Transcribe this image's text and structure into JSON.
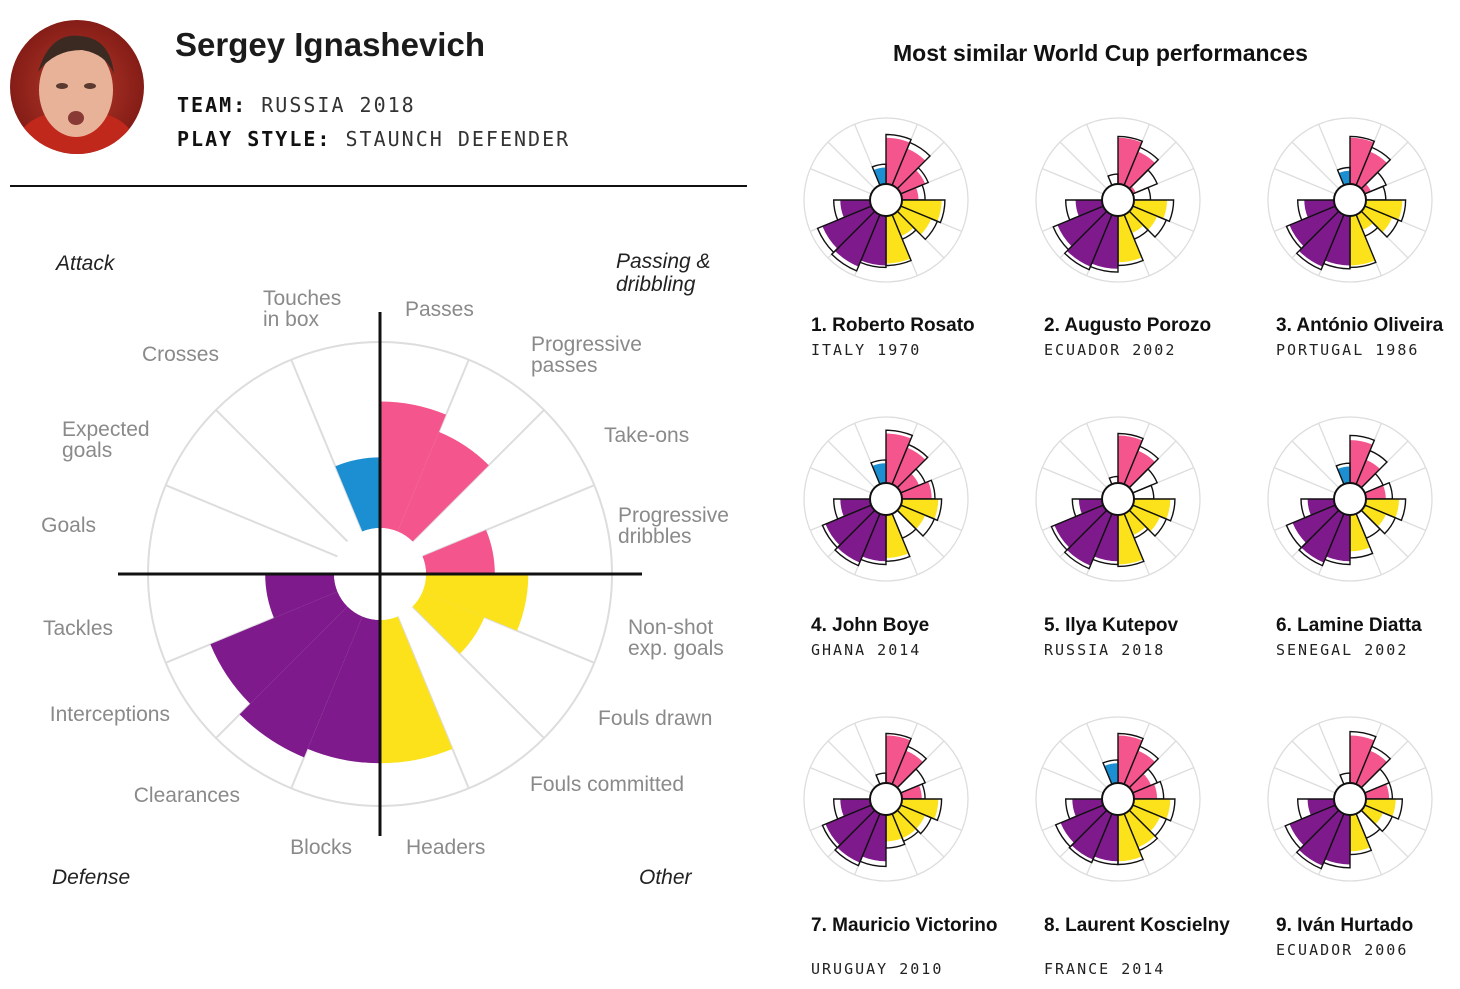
{
  "player": {
    "name": "Sergey Ignashevich",
    "team_label": "TEAM:",
    "team_value": "RUSSIA 2018",
    "style_label": "PLAY STYLE:",
    "style_value": "STAUNCH DEFENDER"
  },
  "colors": {
    "attack": "#1b8fd2",
    "passing": "#f4558c",
    "other": "#fbe21a",
    "defense": "#7e1a8c",
    "grid": "#dddddd",
    "axis": "#111111"
  },
  "chart_data": {
    "type": "polar-bar",
    "quadrants": {
      "attack": "Attack",
      "passing": "Passing & dribbling",
      "defense": "Defense",
      "other": "Other"
    },
    "metrics": [
      {
        "label": "Passes",
        "group": "passing",
        "value": 0.68
      },
      {
        "label": "Progressive passes",
        "group": "passing",
        "value": 0.58
      },
      {
        "label": "Take-ons",
        "group": "passing",
        "value": 0.0
      },
      {
        "label": "Progressive dribbles",
        "group": "passing",
        "value": 0.37
      },
      {
        "label": "Non-shot exp. goals",
        "group": "other",
        "value": 0.55
      },
      {
        "label": "Fouls drawn",
        "group": "other",
        "value": 0.36
      },
      {
        "label": "Fouls committed",
        "group": "other",
        "value": 0.0
      },
      {
        "label": "Headers",
        "group": "other",
        "value": 0.77
      },
      {
        "label": "Blocks",
        "group": "defense",
        "value": 0.77
      },
      {
        "label": "Clearances",
        "group": "defense",
        "value": 0.82
      },
      {
        "label": "Interceptions",
        "group": "defense",
        "value": 0.74
      },
      {
        "label": "Tackles",
        "group": "defense",
        "value": 0.37
      },
      {
        "label": "Goals",
        "group": "attack",
        "value": 0.0
      },
      {
        "label": "Expected goals",
        "group": "attack",
        "value": 0.0
      },
      {
        "label": "Crosses",
        "group": "attack",
        "value": 0.0
      },
      {
        "label": "Touches in box",
        "group": "attack",
        "value": 0.38
      }
    ],
    "similar_title": "Most similar World Cup performances",
    "similar": [
      {
        "rank": "1.",
        "name": "Roberto Rosato",
        "team": "ITALY 1970",
        "values": [
          0.7,
          0.6,
          0.4,
          0.25,
          0.6,
          0.5,
          0.35,
          0.72,
          0.75,
          0.85,
          0.8,
          0.45,
          0,
          0,
          0,
          0.25
        ],
        "outline": [
          0.75,
          0.7,
          0.45,
          0.35,
          0.65,
          0.6,
          0.4,
          0.75,
          0.78,
          0.92,
          0.88,
          0.55,
          0,
          0,
          0,
          0.3
        ]
      },
      {
        "rank": "2.",
        "name": "Augusto Porozo",
        "team": "ECUADOR 2002",
        "values": [
          0.7,
          0.55,
          0.05,
          0.0,
          0.5,
          0.4,
          0.3,
          0.7,
          0.8,
          0.85,
          0.75,
          0.4,
          0,
          0,
          0,
          0
        ],
        "outline": [
          0.72,
          0.62,
          0.4,
          0.25,
          0.6,
          0.55,
          0.4,
          0.75,
          0.85,
          0.9,
          0.82,
          0.55,
          0,
          0,
          0,
          0.15
        ]
      },
      {
        "rank": "3.",
        "name": "António Oliveira",
        "team": "PORTUGAL 1986",
        "values": [
          0.7,
          0.55,
          0.1,
          0.0,
          0.55,
          0.45,
          0.25,
          0.75,
          0.75,
          0.85,
          0.75,
          0.45,
          0,
          0,
          0,
          0.2
        ],
        "outline": [
          0.72,
          0.62,
          0.35,
          0.3,
          0.6,
          0.55,
          0.35,
          0.78,
          0.8,
          0.9,
          0.8,
          0.55,
          0,
          0,
          0,
          0.25
        ]
      },
      {
        "rank": "4.",
        "name": "John Boye",
        "team": "GHANA 2014",
        "values": [
          0.75,
          0.6,
          0.3,
          0.45,
          0.55,
          0.4,
          0.0,
          0.65,
          0.7,
          0.8,
          0.75,
          0.45,
          0,
          0,
          0,
          0.3
        ],
        "outline": [
          0.8,
          0.65,
          0.4,
          0.5,
          0.6,
          0.55,
          0.4,
          0.7,
          0.75,
          0.85,
          0.8,
          0.55,
          0,
          0,
          0,
          0.35
        ]
      },
      {
        "rank": "5.",
        "name": "Ilya Kutepov",
        "team": "RUSSIA 2018",
        "values": [
          0.72,
          0.55,
          0.0,
          0.0,
          0.55,
          0.45,
          0.35,
          0.75,
          0.7,
          0.85,
          0.8,
          0.35,
          0,
          0,
          0,
          0
        ],
        "outline": [
          0.75,
          0.62,
          0.4,
          0.3,
          0.62,
          0.55,
          0.4,
          0.78,
          0.75,
          0.9,
          0.85,
          0.45,
          0,
          0,
          0,
          0.1
        ]
      },
      {
        "rank": "6.",
        "name": "Lamine Diatta",
        "team": "SENEGAL 2002",
        "values": [
          0.65,
          0.4,
          0.0,
          0.3,
          0.5,
          0.35,
          0.0,
          0.55,
          0.7,
          0.8,
          0.7,
          0.4,
          0,
          0,
          0,
          0.25
        ],
        "outline": [
          0.72,
          0.55,
          0.3,
          0.4,
          0.6,
          0.5,
          0.4,
          0.65,
          0.75,
          0.85,
          0.8,
          0.5,
          0,
          0,
          0,
          0.3
        ]
      },
      {
        "rank": "7.",
        "name": "Mauricio Victorino",
        "team": "URUGUAY 2010",
        "values": [
          0.72,
          0.55,
          0.0,
          0.3,
          0.55,
          0.4,
          0.4,
          0.4,
          0.7,
          0.8,
          0.75,
          0.45,
          0,
          0,
          0,
          0
        ],
        "outline": [
          0.75,
          0.62,
          0.4,
          0.35,
          0.6,
          0.5,
          0.45,
          0.5,
          0.78,
          0.85,
          0.8,
          0.55,
          0,
          0,
          0,
          0.15
        ]
      },
      {
        "rank": "8.",
        "name": "Laurent Koscielny",
        "team": "FRANCE 2014",
        "values": [
          0.72,
          0.55,
          0.3,
          0.35,
          0.55,
          0.45,
          0.55,
          0.7,
          0.7,
          0.75,
          0.7,
          0.45,
          0,
          0,
          0,
          0.3
        ],
        "outline": [
          0.75,
          0.62,
          0.4,
          0.45,
          0.62,
          0.55,
          0.6,
          0.75,
          0.75,
          0.8,
          0.78,
          0.55,
          0,
          0,
          0,
          0.35
        ]
      },
      {
        "rank": "9.",
        "name": "Iván Hurtado",
        "team": "ECUADOR 2006",
        "values": [
          0.72,
          0.55,
          0.0,
          0.35,
          0.45,
          0.3,
          0.0,
          0.55,
          0.75,
          0.85,
          0.75,
          0.4,
          0,
          0,
          0,
          0
        ],
        "outline": [
          0.78,
          0.62,
          0.4,
          0.4,
          0.55,
          0.45,
          0.4,
          0.6,
          0.8,
          0.9,
          0.82,
          0.55,
          0,
          0,
          0,
          0.15
        ]
      }
    ]
  }
}
